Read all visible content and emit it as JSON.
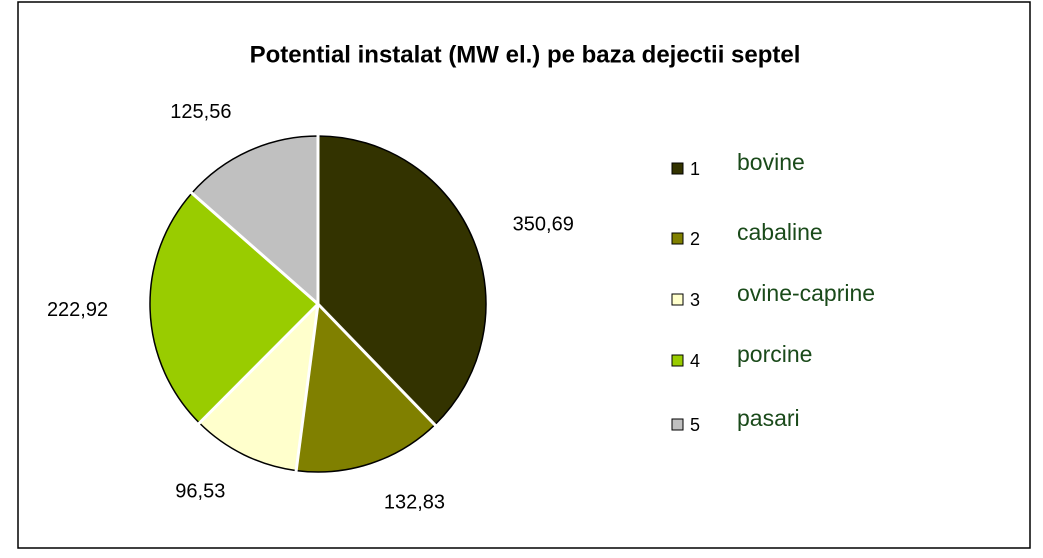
{
  "chart_data": {
    "type": "pie",
    "title": "Potential instalat (MW el.) pe baza dejectii septel",
    "categories": [
      "1",
      "2",
      "3",
      "4",
      "5"
    ],
    "category_names": [
      "bovine",
      "cabaline",
      "ovine-caprine",
      "porcine",
      "pasari"
    ],
    "values": [
      350.69,
      132.83,
      96.53,
      222.92,
      125.56
    ],
    "value_labels": [
      "350,69",
      "132,83",
      "96,53",
      "222,92",
      "125,56"
    ],
    "colors": [
      "#333300",
      "#808000",
      "#ffffcc",
      "#99cc00",
      "#c0c0c0"
    ],
    "legend": "right"
  }
}
